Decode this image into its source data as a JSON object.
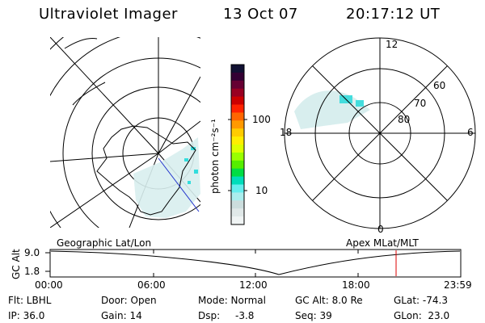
{
  "header": {
    "title": "Ultraviolet Imager",
    "date": "13 Oct 07",
    "time": "20:17:12 UT"
  },
  "colorbar": {
    "unit_label": "photon cm⁻²s⁻¹",
    "ticks": [
      "100",
      "10"
    ],
    "colors": [
      "#111133",
      "#330033",
      "#660033",
      "#990022",
      "#cc0000",
      "#ff2200",
      "#ff6600",
      "#ff9900",
      "#ffcc00",
      "#ffee00",
      "#ddff00",
      "#99ff00",
      "#55ee00",
      "#00dd44",
      "#00ddbb",
      "#66eeee",
      "#aaeeee",
      "#ccdddd",
      "#e0e8e8",
      "#f0f4f4"
    ]
  },
  "left_panel": {
    "label": "Geographic Lat/Lon"
  },
  "right_panel": {
    "label": "Apex MLat/MLT",
    "mlt_labels": {
      "top": "12",
      "bottom": "0",
      "left": "18",
      "right": "6"
    },
    "mlat_labels": [
      "60",
      "70",
      "80"
    ]
  },
  "altitude_plot": {
    "ylabel": "GC Alt",
    "yticks": [
      "9.0",
      "1.8"
    ],
    "xticks": [
      "00:00",
      "06:00",
      "12:00",
      "18:00",
      "23:59"
    ],
    "marker_color": "#dd0000"
  },
  "info": {
    "filter": "Flt: LBHL",
    "ip": "IP: 36.0",
    "door": "Door: Open",
    "gain": "Gain: 14",
    "mode": "Mode: Normal",
    "dsp_label": "Dsp:",
    "dsp_value": "-3.8",
    "gc_alt": "GC Alt: 8.0 Re",
    "seq": "Seq: 39",
    "glat": "GLat: -74.3",
    "glon": "GLon:  23.0"
  }
}
